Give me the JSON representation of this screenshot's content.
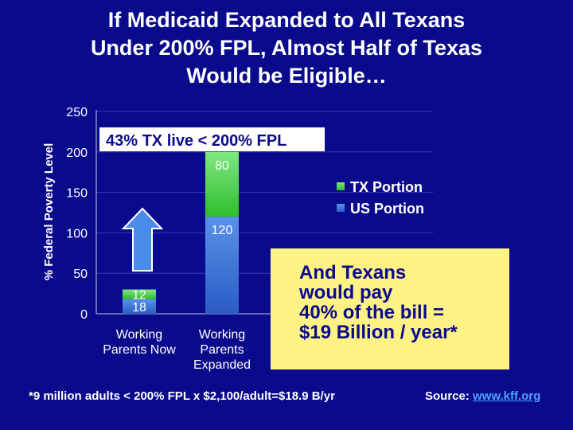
{
  "title_lines": [
    "If Medicaid Expanded to All Texans",
    "Under 200% FPL, Almost Half of Texas",
    "Would be Eligible…"
  ],
  "chart_data": {
    "type": "bar",
    "stacked": true,
    "ylabel": "% Federal Poverty Level",
    "ylim": [
      0,
      250
    ],
    "yticks": [
      0,
      50,
      100,
      150,
      200,
      250
    ],
    "categories": [
      [
        "Working",
        "Parents Now"
      ],
      [
        "Working",
        "Parents",
        "Expanded"
      ]
    ],
    "series": [
      {
        "name": "US Portion",
        "values": [
          18,
          120
        ],
        "color": "#3d7be0"
      },
      {
        "name": "TX Portion",
        "values": [
          12,
          80
        ],
        "color": "#3ccf3c"
      }
    ],
    "data_labels": [
      [
        "18",
        "12"
      ],
      [
        "120",
        "80"
      ]
    ],
    "legend_order": [
      "TX Portion",
      "US Portion"
    ],
    "legend_position": "right",
    "annotation": "43% TX live < 200% FPL",
    "annotation_background": "#ffffff",
    "arrow_color": "#4a8de8"
  },
  "callout_lines": [
    "And Texans",
    "would pay",
    "40% of the bill =",
    "$19 Billion / year*"
  ],
  "footnote": "*9 million adults < 200% FPL x $2,100/adult=$18.9 B/yr",
  "source": {
    "label": "Source: ",
    "link": "www.kff.org"
  }
}
